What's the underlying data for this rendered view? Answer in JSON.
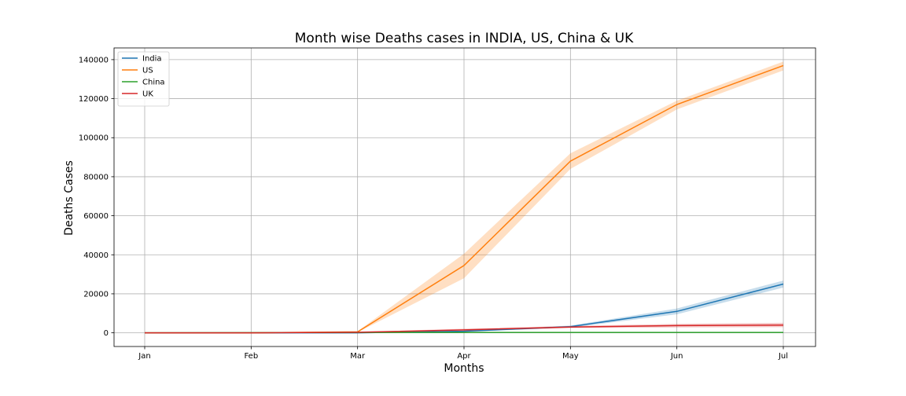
{
  "chart_data": {
    "type": "line",
    "title": "Month wise Deaths cases in INDIA, US, China & UK",
    "xlabel": "Months",
    "ylabel": "Deaths Cases",
    "categories": [
      "Jan",
      "Feb",
      "Mar",
      "Apr",
      "May",
      "Jun",
      "Jul"
    ],
    "ylim": [
      -7000,
      146000
    ],
    "yticks": [
      0,
      20000,
      40000,
      60000,
      80000,
      100000,
      120000,
      140000
    ],
    "ytick_labels": [
      "0",
      "20000",
      "40000",
      "60000",
      "80000",
      "100000",
      "120000",
      "140000"
    ],
    "grid": true,
    "legend_position": "top-left",
    "series": [
      {
        "name": "India",
        "color": "#1f77b4",
        "values": [
          0,
          0,
          20,
          800,
          3200,
          11000,
          25000
        ],
        "band_lower": [
          0,
          0,
          10,
          500,
          2700,
          9500,
          23200
        ],
        "band_upper": [
          0,
          0,
          30,
          1100,
          3700,
          12500,
          26800
        ]
      },
      {
        "name": "US",
        "color": "#ff7f0e",
        "values": [
          0,
          0,
          500,
          34500,
          88000,
          117000,
          137000
        ],
        "band_lower": [
          0,
          0,
          300,
          28000,
          84000,
          114500,
          134500
        ],
        "band_upper": [
          0,
          0,
          800,
          40500,
          92000,
          119000,
          139000
        ]
      },
      {
        "name": "China",
        "color": "#2ca02c",
        "values": [
          0,
          100,
          200,
          200,
          200,
          200,
          200
        ],
        "band_lower": [
          0,
          50,
          150,
          180,
          190,
          190,
          190
        ],
        "band_upper": [
          0,
          150,
          250,
          220,
          210,
          210,
          210
        ]
      },
      {
        "name": "UK",
        "color": "#d62728",
        "values": [
          0,
          0,
          300,
          1500,
          3000,
          3700,
          4000
        ],
        "band_lower": [
          0,
          0,
          150,
          900,
          2500,
          2800,
          2900
        ],
        "band_upper": [
          0,
          0,
          450,
          2100,
          3500,
          4600,
          5100
        ]
      }
    ]
  }
}
